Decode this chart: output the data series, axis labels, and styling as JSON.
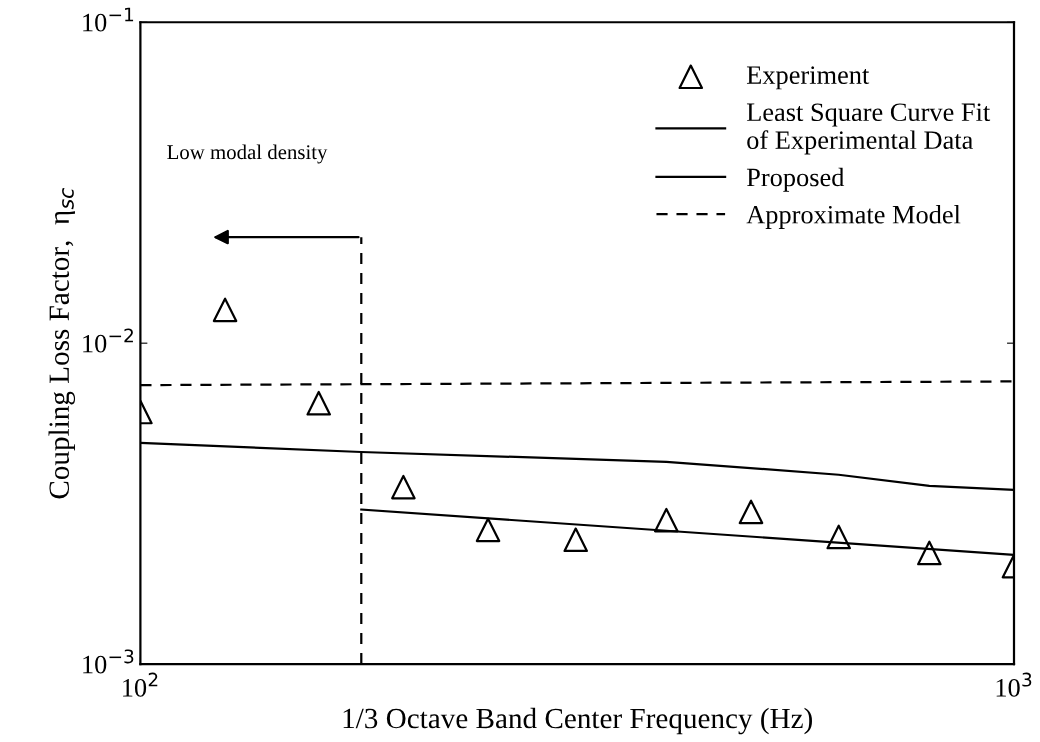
{
  "chart_data": {
    "type": "line",
    "xlabel": "1/3 Octave Band Center Frequency (Hz)",
    "ylabel": "Coupling Loss Factor,  η$_{sc}$",
    "log": "xy",
    "xlim": [
      100,
      1000
    ],
    "ylim": [
      0.001,
      0.1
    ],
    "xticks": [
      {
        "value": 100,
        "label": "10$^{2}$"
      },
      {
        "value": 1000,
        "label": "10$^{3}$"
      }
    ],
    "yticks": [
      {
        "value": 0.001,
        "label": "10$^{−3}$"
      },
      {
        "value": 0.01,
        "label": "10$^{−2}$"
      },
      {
        "value": 0.1,
        "label": "10$^{−1}$"
      }
    ],
    "grid": false,
    "legend": "top right",
    "series": [
      {
        "name": "Experiment",
        "type": "scatter",
        "marker": "triangle",
        "color": "#000000",
        "x": [
          100,
          125,
          160,
          200,
          250,
          315,
          400,
          500,
          630,
          800,
          1000
        ],
        "values": [
          0.0061,
          0.0127,
          0.0065,
          0.00356,
          0.00262,
          0.00244,
          0.00281,
          0.00298,
          0.00249,
          0.00222,
          0.00202
        ]
      },
      {
        "name": "Least Square Curve Fit\nof Experimental Data",
        "line_style": "solid",
        "color": "#000000",
        "x": [
          179,
          1000
        ],
        "values": [
          0.00303,
          0.00219
        ]
      },
      {
        "name": "Proposed",
        "line_style": "solid",
        "color": "#000000",
        "x": [
          100,
          179,
          400,
          630,
          800,
          1000
        ],
        "values": [
          0.00489,
          0.00458,
          0.00427,
          0.00389,
          0.00359,
          0.00349
        ]
      },
      {
        "name": "Approximate Model",
        "line_style": "dashed",
        "color": "#000000",
        "x": [
          100,
          1000
        ],
        "values": [
          0.0074,
          0.0076
        ]
      },
      {
        "line_style": "dashed",
        "color": "#000000",
        "x": [
          179,
          179
        ],
        "values": [
          0.001,
          0.0214
        ]
      }
    ],
    "annotations": [
      "Low modal density"
    ]
  }
}
